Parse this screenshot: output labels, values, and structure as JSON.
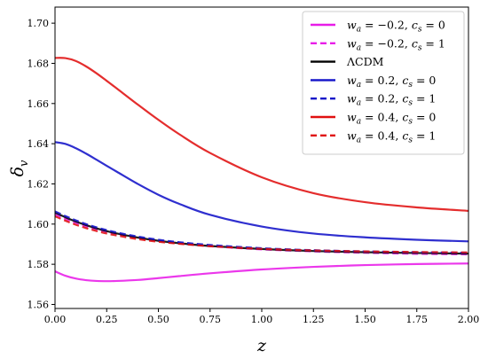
{
  "chart_data": {
    "type": "line",
    "xlabel": "z",
    "ylabel": "δ",
    "ylabel_subscript": "v",
    "xlim": [
      0.0,
      2.0
    ],
    "ylim": [
      1.558,
      1.708
    ],
    "xticks": [
      0.0,
      0.25,
      0.5,
      0.75,
      1.0,
      1.25,
      1.5,
      1.75,
      2.0
    ],
    "xtick_labels": [
      "0.00",
      "0.25",
      "0.50",
      "0.75",
      "1.00",
      "1.25",
      "1.50",
      "1.75",
      "2.00"
    ],
    "yticks": [
      1.56,
      1.58,
      1.6,
      1.62,
      1.64,
      1.66,
      1.68,
      1.7
    ],
    "ytick_labels": [
      "1.56",
      "1.58",
      "1.60",
      "1.62",
      "1.64",
      "1.66",
      "1.68",
      "1.70"
    ],
    "grid": false,
    "legend_position": "top-right",
    "series": [
      {
        "name": "w_a = −0.2, c_s = 0",
        "legend_main": "w",
        "legend_sub": "a",
        "legend_rest": " = −0.2, ",
        "legend_main2": "c",
        "legend_sub2": "s",
        "legend_rest2": " = 0",
        "color": "#e81ce8",
        "style": "solid",
        "x": [
          0.0,
          0.05,
          0.1,
          0.15,
          0.2,
          0.25,
          0.3,
          0.4,
          0.5,
          0.6,
          0.75,
          1.0,
          1.25,
          1.5,
          1.75,
          2.0
        ],
        "y": [
          1.5765,
          1.5743,
          1.5729,
          1.5721,
          1.5717,
          1.5716,
          1.5717,
          1.5722,
          1.5731,
          1.5741,
          1.5755,
          1.5774,
          1.5787,
          1.5796,
          1.5801,
          1.5804
        ]
      },
      {
        "name": "w_a = −0.2, c_s = 1",
        "legend_main": "w",
        "legend_sub": "a",
        "legend_rest": " = −0.2, ",
        "legend_main2": "c",
        "legend_sub2": "s",
        "legend_rest2": " = 1",
        "color": "#e81ce8",
        "style": "dashed",
        "x": [
          0.0,
          0.05,
          0.1,
          0.15,
          0.2,
          0.25,
          0.3,
          0.4,
          0.5,
          0.6,
          0.75,
          1.0,
          1.25,
          1.5,
          1.75,
          2.0
        ],
        "y": [
          1.6048,
          1.6026,
          1.6006,
          1.5989,
          1.5974,
          1.5961,
          1.595,
          1.5931,
          1.5916,
          1.5904,
          1.589,
          1.5874,
          1.5864,
          1.5857,
          1.5852,
          1.5849
        ]
      },
      {
        "name": "ΛCDM",
        "legend_text": "ΛCDM",
        "color": "#000000",
        "style": "solid",
        "x": [
          0.0,
          0.05,
          0.1,
          0.15,
          0.2,
          0.25,
          0.3,
          0.4,
          0.5,
          0.6,
          0.75,
          1.0,
          1.25,
          1.5,
          1.75,
          2.0
        ],
        "y": [
          1.6057,
          1.6034,
          1.6013,
          1.5995,
          1.5979,
          1.5965,
          1.5953,
          1.5933,
          1.5917,
          1.5905,
          1.5891,
          1.5876,
          1.5866,
          1.586,
          1.5856,
          1.5853
        ]
      },
      {
        "name": "w_a = 0.2, c_s = 0",
        "legend_main": "w",
        "legend_sub": "a",
        "legend_rest": " = 0.2, ",
        "legend_main2": "c",
        "legend_sub2": "s",
        "legend_rest2": " = 0",
        "color": "#1212c8",
        "style": "solid",
        "x": [
          0.0,
          0.05,
          0.1,
          0.15,
          0.2,
          0.25,
          0.3,
          0.4,
          0.5,
          0.6,
          0.75,
          1.0,
          1.25,
          1.5,
          1.75,
          2.0
        ],
        "y": [
          1.6408,
          1.6399,
          1.6378,
          1.6351,
          1.6321,
          1.629,
          1.626,
          1.62,
          1.6146,
          1.6101,
          1.6046,
          1.5988,
          1.5953,
          1.5934,
          1.5922,
          1.5914
        ]
      },
      {
        "name": "w_a = 0.2, c_s = 1",
        "legend_main": "w",
        "legend_sub": "a",
        "legend_rest": " = 0.2, ",
        "legend_main2": "c",
        "legend_sub2": "s",
        "legend_rest2": " = 1",
        "color": "#1212c8",
        "style": "dashed",
        "x": [
          0.0,
          0.05,
          0.1,
          0.15,
          0.2,
          0.25,
          0.3,
          0.4,
          0.5,
          0.6,
          0.75,
          1.0,
          1.25,
          1.5,
          1.75,
          2.0
        ],
        "y": [
          1.6063,
          1.604,
          1.6019,
          1.6,
          1.5984,
          1.597,
          1.5958,
          1.5938,
          1.5922,
          1.591,
          1.5896,
          1.588,
          1.587,
          1.5864,
          1.586,
          1.5857
        ]
      },
      {
        "name": "w_a = 0.4, c_s = 0",
        "legend_main": "w",
        "legend_sub": "a",
        "legend_rest": " = 0.4, ",
        "legend_main2": "c",
        "legend_sub2": "s",
        "legend_rest2": " = 0",
        "color": "#e01010",
        "style": "solid",
        "x": [
          0.0,
          0.05,
          0.1,
          0.15,
          0.2,
          0.25,
          0.3,
          0.4,
          0.5,
          0.6,
          0.75,
          1.0,
          1.25,
          1.5,
          1.75,
          2.0
        ],
        "y": [
          1.6827,
          1.6826,
          1.6812,
          1.6785,
          1.6751,
          1.6713,
          1.6674,
          1.6595,
          1.6519,
          1.6448,
          1.6354,
          1.6233,
          1.6154,
          1.6109,
          1.6083,
          1.6066
        ]
      },
      {
        "name": "w_a = 0.4, c_s = 1",
        "legend_main": "w",
        "legend_sub": "a",
        "legend_rest": " = 0.4, ",
        "legend_main2": "c",
        "legend_sub2": "s",
        "legend_rest2": " = 1",
        "color": "#e01010",
        "style": "dashed",
        "x": [
          0.0,
          0.05,
          0.1,
          0.15,
          0.2,
          0.25,
          0.3,
          0.4,
          0.5,
          0.6,
          0.75,
          1.0,
          1.25,
          1.5,
          1.75,
          2.0
        ],
        "y": [
          1.6039,
          1.6017,
          1.5997,
          1.598,
          1.5966,
          1.5953,
          1.5943,
          1.5925,
          1.5912,
          1.5902,
          1.589,
          1.5877,
          1.5869,
          1.5864,
          1.5861,
          1.5859
        ]
      }
    ]
  }
}
